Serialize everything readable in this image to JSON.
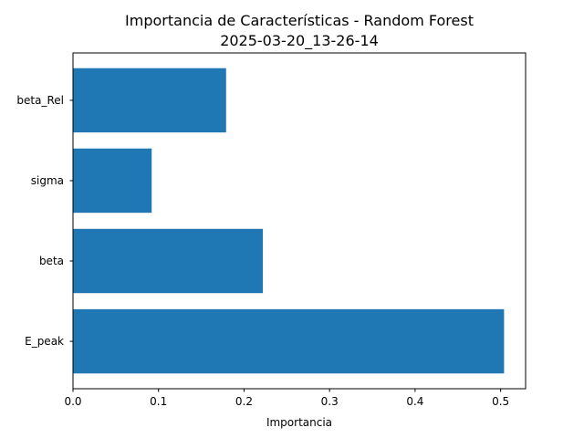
{
  "chart_data": {
    "type": "bar",
    "orientation": "horizontal",
    "title": "Importancia de Características - Random Forest",
    "subtitle": "2025-03-20_13-26-14",
    "xlabel": "Importancia",
    "ylabel": "",
    "categories": [
      "E_peak",
      "beta",
      "sigma",
      "beta_Rel"
    ],
    "values": [
      0.504,
      0.222,
      0.092,
      0.179
    ],
    "xlim": [
      0,
      0.5292
    ],
    "xticks": [
      0.0,
      0.1,
      0.2,
      0.3,
      0.4,
      0.5
    ],
    "xtick_labels": [
      "0.0",
      "0.1",
      "0.2",
      "0.3",
      "0.4",
      "0.5"
    ],
    "bar_color": "#1f77b4",
    "grid": false,
    "legend": "none"
  }
}
